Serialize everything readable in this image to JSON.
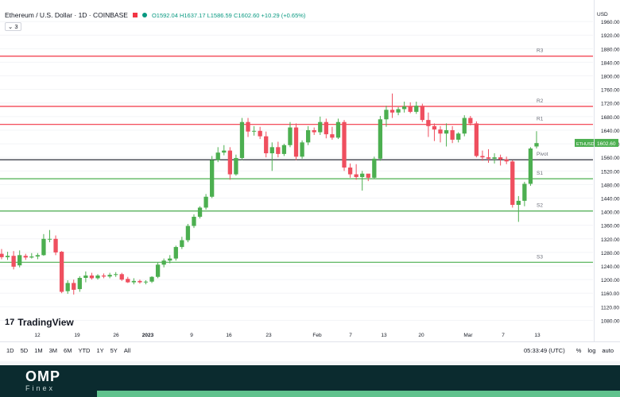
{
  "header": {
    "symbol": "Ethereum / U.S. Dollar · 1D · COINBASE",
    "ohlc": "O1592.04 H1637.17 L1586.59 C1602.60 +10.29 (+0.65%)",
    "indicator_toggle": "3"
  },
  "logo": {
    "text": "TradingView",
    "mark": "17"
  },
  "toolbar": {
    "timeframes": [
      "1D",
      "5D",
      "1M",
      "3M",
      "6M",
      "YTD",
      "1Y",
      "5Y",
      "All"
    ],
    "clock": "05:33:49 (UTC)",
    "percent": "%",
    "log": "log",
    "auto": "auto"
  },
  "footer": {
    "brand": "OMP",
    "sub": "Finex"
  },
  "colors": {
    "up": "#4caf50",
    "down": "#ef4f5f",
    "resistance": "#f23645",
    "support": "#4caf50",
    "pivot": "#131722"
  },
  "chart_data": {
    "type": "candlestick",
    "y_axis": {
      "unit": "USD",
      "ylim": [
        1060,
        2000
      ],
      "ticks": [
        1080,
        1120,
        1160,
        1200,
        1240,
        1280,
        1320,
        1360,
        1400,
        1440,
        1480,
        1520,
        1560,
        1600,
        1640,
        1680,
        1720,
        1760,
        1800,
        1840,
        1880,
        1920,
        1960
      ],
      "currency_label": "USD"
    },
    "x_axis": {
      "labels": [
        "12",
        "19",
        "26",
        "2023",
        "9",
        "16",
        "23",
        "Feb",
        "7",
        "13",
        "20",
        "Mar",
        "7",
        "13"
      ]
    },
    "levels": [
      {
        "name": "R3",
        "value": 1858,
        "kind": "resistance"
      },
      {
        "name": "R2",
        "value": 1710,
        "kind": "resistance"
      },
      {
        "name": "R1",
        "value": 1657,
        "kind": "resistance"
      },
      {
        "name": "Pivot",
        "value": 1553,
        "kind": "pivot"
      },
      {
        "name": "S1",
        "value": 1497,
        "kind": "support"
      },
      {
        "name": "S2",
        "value": 1402,
        "kind": "support"
      },
      {
        "name": "S3",
        "value": 1251,
        "kind": "support"
      }
    ],
    "price_label": {
      "symbol": "ETHUSD",
      "value": "1602.60"
    },
    "candles": [
      {
        "o": 1276,
        "h": 1290,
        "l": 1260,
        "c": 1266
      },
      {
        "o": 1266,
        "h": 1282,
        "l": 1258,
        "c": 1270
      },
      {
        "o": 1270,
        "h": 1284,
        "l": 1230,
        "c": 1238
      },
      {
        "o": 1242,
        "h": 1286,
        "l": 1236,
        "c": 1272
      },
      {
        "o": 1270,
        "h": 1276,
        "l": 1258,
        "c": 1265
      },
      {
        "o": 1265,
        "h": 1278,
        "l": 1262,
        "c": 1268
      },
      {
        "o": 1268,
        "h": 1278,
        "l": 1260,
        "c": 1272
      },
      {
        "o": 1272,
        "h": 1334,
        "l": 1270,
        "c": 1320
      },
      {
        "o": 1320,
        "h": 1346,
        "l": 1310,
        "c": 1320
      },
      {
        "o": 1320,
        "h": 1330,
        "l": 1272,
        "c": 1280
      },
      {
        "o": 1282,
        "h": 1284,
        "l": 1160,
        "c": 1164
      },
      {
        "o": 1166,
        "h": 1198,
        "l": 1158,
        "c": 1190
      },
      {
        "o": 1190,
        "h": 1200,
        "l": 1156,
        "c": 1170
      },
      {
        "o": 1172,
        "h": 1210,
        "l": 1164,
        "c": 1205
      },
      {
        "o": 1205,
        "h": 1224,
        "l": 1192,
        "c": 1212
      },
      {
        "o": 1212,
        "h": 1220,
        "l": 1200,
        "c": 1204
      },
      {
        "o": 1204,
        "h": 1216,
        "l": 1200,
        "c": 1212
      },
      {
        "o": 1212,
        "h": 1218,
        "l": 1204,
        "c": 1209
      },
      {
        "o": 1209,
        "h": 1220,
        "l": 1204,
        "c": 1214
      },
      {
        "o": 1214,
        "h": 1222,
        "l": 1208,
        "c": 1216
      },
      {
        "o": 1216,
        "h": 1220,
        "l": 1196,
        "c": 1200
      },
      {
        "o": 1202,
        "h": 1208,
        "l": 1190,
        "c": 1192
      },
      {
        "o": 1192,
        "h": 1204,
        "l": 1186,
        "c": 1196
      },
      {
        "o": 1196,
        "h": 1200,
        "l": 1188,
        "c": 1192
      },
      {
        "o": 1192,
        "h": 1198,
        "l": 1186,
        "c": 1194
      },
      {
        "o": 1194,
        "h": 1210,
        "l": 1190,
        "c": 1208
      },
      {
        "o": 1208,
        "h": 1250,
        "l": 1204,
        "c": 1244
      },
      {
        "o": 1244,
        "h": 1262,
        "l": 1236,
        "c": 1256
      },
      {
        "o": 1256,
        "h": 1272,
        "l": 1248,
        "c": 1262
      },
      {
        "o": 1262,
        "h": 1300,
        "l": 1256,
        "c": 1296
      },
      {
        "o": 1296,
        "h": 1326,
        "l": 1290,
        "c": 1316
      },
      {
        "o": 1316,
        "h": 1364,
        "l": 1310,
        "c": 1358
      },
      {
        "o": 1358,
        "h": 1392,
        "l": 1352,
        "c": 1385
      },
      {
        "o": 1385,
        "h": 1416,
        "l": 1380,
        "c": 1412
      },
      {
        "o": 1412,
        "h": 1452,
        "l": 1406,
        "c": 1444
      },
      {
        "o": 1444,
        "h": 1564,
        "l": 1440,
        "c": 1552
      },
      {
        "o": 1552,
        "h": 1590,
        "l": 1546,
        "c": 1574
      },
      {
        "o": 1574,
        "h": 1596,
        "l": 1566,
        "c": 1580
      },
      {
        "o": 1580,
        "h": 1590,
        "l": 1494,
        "c": 1510
      },
      {
        "o": 1510,
        "h": 1568,
        "l": 1506,
        "c": 1558
      },
      {
        "o": 1558,
        "h": 1676,
        "l": 1552,
        "c": 1664
      },
      {
        "o": 1664,
        "h": 1676,
        "l": 1620,
        "c": 1636
      },
      {
        "o": 1636,
        "h": 1652,
        "l": 1624,
        "c": 1638
      },
      {
        "o": 1638,
        "h": 1650,
        "l": 1614,
        "c": 1622
      },
      {
        "o": 1622,
        "h": 1636,
        "l": 1560,
        "c": 1572
      },
      {
        "o": 1572,
        "h": 1604,
        "l": 1520,
        "c": 1590
      },
      {
        "o": 1590,
        "h": 1606,
        "l": 1560,
        "c": 1570
      },
      {
        "o": 1570,
        "h": 1600,
        "l": 1564,
        "c": 1596
      },
      {
        "o": 1596,
        "h": 1664,
        "l": 1590,
        "c": 1648
      },
      {
        "o": 1648,
        "h": 1660,
        "l": 1552,
        "c": 1562
      },
      {
        "o": 1562,
        "h": 1610,
        "l": 1556,
        "c": 1604
      },
      {
        "o": 1604,
        "h": 1652,
        "l": 1596,
        "c": 1640
      },
      {
        "o": 1640,
        "h": 1648,
        "l": 1626,
        "c": 1634
      },
      {
        "o": 1634,
        "h": 1680,
        "l": 1626,
        "c": 1664
      },
      {
        "o": 1664,
        "h": 1674,
        "l": 1616,
        "c": 1628
      },
      {
        "o": 1628,
        "h": 1650,
        "l": 1612,
        "c": 1618
      },
      {
        "o": 1618,
        "h": 1674,
        "l": 1614,
        "c": 1664
      },
      {
        "o": 1664,
        "h": 1670,
        "l": 1520,
        "c": 1530
      },
      {
        "o": 1530,
        "h": 1542,
        "l": 1500,
        "c": 1510
      },
      {
        "o": 1510,
        "h": 1540,
        "l": 1494,
        "c": 1502
      },
      {
        "o": 1502,
        "h": 1520,
        "l": 1462,
        "c": 1512
      },
      {
        "o": 1512,
        "h": 1510,
        "l": 1490,
        "c": 1500
      },
      {
        "o": 1500,
        "h": 1562,
        "l": 1496,
        "c": 1556
      },
      {
        "o": 1556,
        "h": 1682,
        "l": 1550,
        "c": 1672
      },
      {
        "o": 1672,
        "h": 1712,
        "l": 1650,
        "c": 1700
      },
      {
        "o": 1700,
        "h": 1748,
        "l": 1676,
        "c": 1692
      },
      {
        "o": 1692,
        "h": 1708,
        "l": 1684,
        "c": 1702
      },
      {
        "o": 1702,
        "h": 1724,
        "l": 1692,
        "c": 1710
      },
      {
        "o": 1710,
        "h": 1722,
        "l": 1690,
        "c": 1694
      },
      {
        "o": 1694,
        "h": 1724,
        "l": 1688,
        "c": 1712
      },
      {
        "o": 1712,
        "h": 1718,
        "l": 1664,
        "c": 1670
      },
      {
        "o": 1670,
        "h": 1692,
        "l": 1620,
        "c": 1652
      },
      {
        "o": 1652,
        "h": 1660,
        "l": 1608,
        "c": 1642
      },
      {
        "o": 1642,
        "h": 1652,
        "l": 1604,
        "c": 1630
      },
      {
        "o": 1630,
        "h": 1660,
        "l": 1592,
        "c": 1640
      },
      {
        "o": 1640,
        "h": 1652,
        "l": 1602,
        "c": 1612
      },
      {
        "o": 1612,
        "h": 1634,
        "l": 1604,
        "c": 1630
      },
      {
        "o": 1630,
        "h": 1684,
        "l": 1622,
        "c": 1676
      },
      {
        "o": 1676,
        "h": 1682,
        "l": 1654,
        "c": 1660
      },
      {
        "o": 1660,
        "h": 1666,
        "l": 1560,
        "c": 1564
      },
      {
        "o": 1564,
        "h": 1580,
        "l": 1550,
        "c": 1560
      },
      {
        "o": 1560,
        "h": 1584,
        "l": 1544,
        "c": 1556
      },
      {
        "o": 1556,
        "h": 1572,
        "l": 1542,
        "c": 1560
      },
      {
        "o": 1560,
        "h": 1568,
        "l": 1536,
        "c": 1554
      },
      {
        "o": 1554,
        "h": 1562,
        "l": 1540,
        "c": 1548
      },
      {
        "o": 1548,
        "h": 1552,
        "l": 1412,
        "c": 1420
      },
      {
        "o": 1420,
        "h": 1446,
        "l": 1370,
        "c": 1432
      },
      {
        "o": 1432,
        "h": 1488,
        "l": 1416,
        "c": 1482
      },
      {
        "o": 1482,
        "h": 1590,
        "l": 1476,
        "c": 1586
      },
      {
        "o": 1592,
        "h": 1637,
        "l": 1586,
        "c": 1602
      }
    ]
  }
}
